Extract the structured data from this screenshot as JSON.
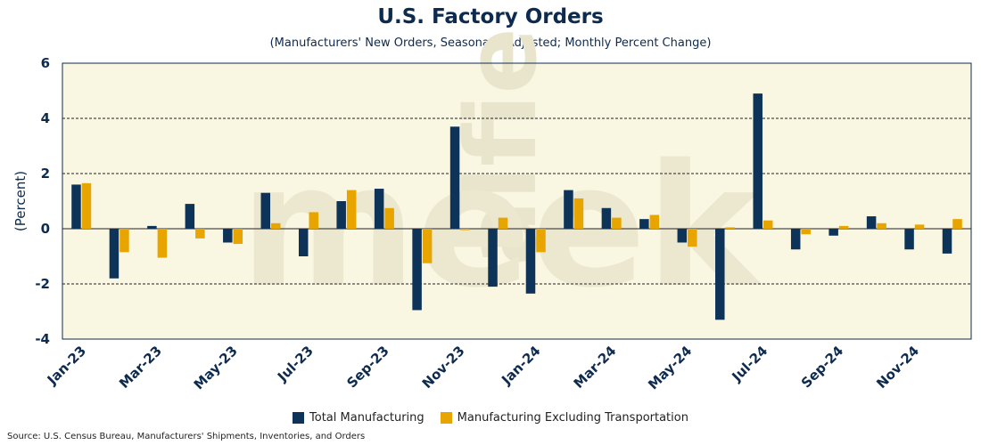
{
  "chart_data": {
    "type": "bar",
    "title": "U.S. Factory Orders",
    "subtitle": "(Manufacturers' New Orders, Seasonally Adjusted; Monthly Percent Change)",
    "ylabel": "(Percent)",
    "xlabel": "",
    "ylim": [
      -4,
      6
    ],
    "yticks": [
      -4,
      -2,
      0,
      2,
      4,
      6
    ],
    "grid": "horizontal dashed",
    "legend": "bottom-center",
    "categories": [
      "Jan-23",
      "Feb-23",
      "Mar-23",
      "Apr-23",
      "May-23",
      "Jun-23",
      "Jul-23",
      "Aug-23",
      "Sep-23",
      "Oct-23",
      "Nov-23",
      "Dec-23",
      "Jan-24",
      "Feb-24",
      "Mar-24",
      "Apr-24",
      "May-24",
      "Jun-24",
      "Jul-24",
      "Aug-24",
      "Sep-24",
      "Oct-24",
      "Nov-24",
      "Dec-24"
    ],
    "x_tick_labels": [
      "Jan-23",
      "Mar-23",
      "May-23",
      "Jul-23",
      "Sep-23",
      "Nov-23",
      "Jan-24",
      "Mar-24",
      "May-24",
      "Jul-24",
      "Sep-24",
      "Nov-24"
    ],
    "series": [
      {
        "name": "Total Manufacturing",
        "color": "#0d3359",
        "values": [
          1.6,
          -1.8,
          0.1,
          0.9,
          -0.5,
          1.3,
          -1.0,
          1.0,
          1.45,
          -2.95,
          3.7,
          -2.1,
          -2.35,
          1.4,
          0.75,
          0.35,
          -0.5,
          -3.3,
          4.9,
          -0.75,
          -0.25,
          0.45,
          -0.75,
          -0.9
        ]
      },
      {
        "name": "Manufacturing Excluding Transportation",
        "color": "#e8a500",
        "values": [
          1.65,
          -0.85,
          -1.05,
          -0.35,
          -0.55,
          0.2,
          0.6,
          1.4,
          0.75,
          -1.25,
          -0.05,
          0.4,
          -0.85,
          1.1,
          0.4,
          0.5,
          -0.65,
          0.05,
          0.3,
          -0.2,
          0.1,
          0.2,
          0.15,
          0.35
        ]
      }
    ]
  },
  "watermark": "alfie meek",
  "source": "Source: U.S. Census Bureau, Manufacturers' Shipments, Inventories, and Orders",
  "colors": {
    "background": "#f9f6e1",
    "axis": "#0d2a4f"
  }
}
